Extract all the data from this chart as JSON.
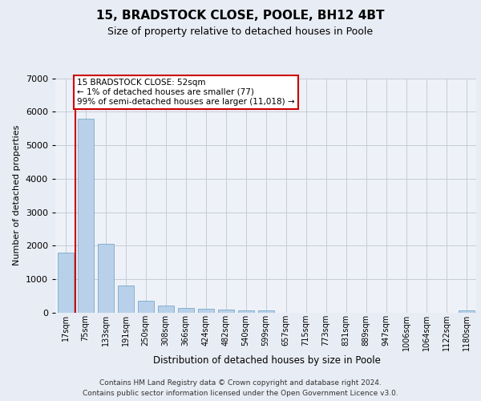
{
  "title1": "15, BRADSTOCK CLOSE, POOLE, BH12 4BT",
  "title2": "Size of property relative to detached houses in Poole",
  "xlabel": "Distribution of detached houses by size in Poole",
  "ylabel": "Number of detached properties",
  "categories": [
    "17sqm",
    "75sqm",
    "133sqm",
    "191sqm",
    "250sqm",
    "308sqm",
    "366sqm",
    "424sqm",
    "482sqm",
    "540sqm",
    "599sqm",
    "657sqm",
    "715sqm",
    "773sqm",
    "831sqm",
    "889sqm",
    "947sqm",
    "1006sqm",
    "1064sqm",
    "1122sqm",
    "1180sqm"
  ],
  "values": [
    1790,
    5790,
    2060,
    820,
    370,
    220,
    145,
    120,
    100,
    80,
    70,
    0,
    0,
    0,
    0,
    0,
    0,
    0,
    0,
    0,
    70
  ],
  "bar_color": "#b8d0ea",
  "bar_edge_color": "#6a9ec0",
  "vline_color": "#cc0000",
  "annotation_text": "15 BRADSTOCK CLOSE: 52sqm\n← 1% of detached houses are smaller (77)\n99% of semi-detached houses are larger (11,018) →",
  "ylim": [
    0,
    7000
  ],
  "yticks": [
    0,
    1000,
    2000,
    3000,
    4000,
    5000,
    6000,
    7000
  ],
  "footer1": "Contains HM Land Registry data © Crown copyright and database right 2024.",
  "footer2": "Contains public sector information licensed under the Open Government Licence v3.0.",
  "bg_color": "#e8ecf4",
  "plot_bg_color": "#eef2f8",
  "grid_color": "#c5ccd8"
}
